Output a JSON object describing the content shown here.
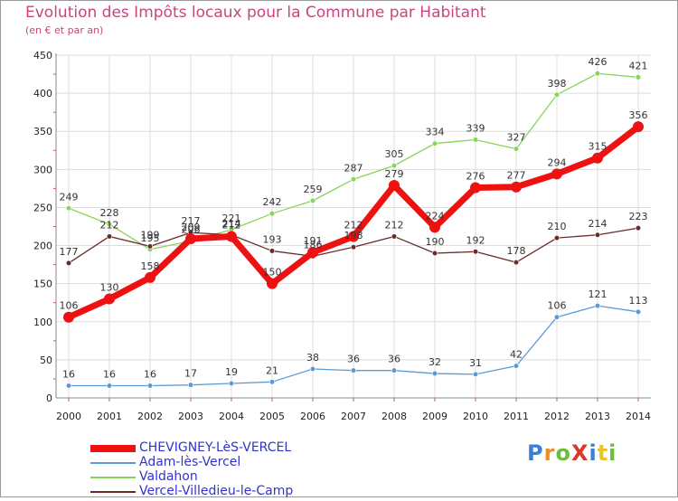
{
  "title": "Evolution des Impôts locaux pour la Commune par Habitant",
  "subtitle": "(en € et par an)",
  "logo": "ProXiti",
  "chart_data": {
    "type": "line",
    "title": "Evolution des Impôts locaux pour la Commune par Habitant",
    "subtitle": "(en € et par an)",
    "xlabel": "",
    "ylabel": "",
    "x": [
      "2000",
      "2001",
      "2002",
      "2003",
      "2004",
      "2005",
      "2006",
      "2007",
      "2008",
      "2009",
      "2010",
      "2011",
      "2012",
      "2013",
      "2014"
    ],
    "ylim": [
      0,
      450
    ],
    "yticks": [
      0,
      50,
      100,
      150,
      200,
      250,
      300,
      350,
      400,
      450
    ],
    "grid": true,
    "legend_position": "bottom-left",
    "series": [
      {
        "name": "CHEVIGNEY-LèS-VERCEL",
        "color": "#ee1111",
        "values": [
          106,
          130,
          158,
          209,
          212,
          150,
          191,
          212,
          279,
          224,
          276,
          277,
          294,
          315,
          356
        ]
      },
      {
        "name": "Adam-lès-Vercel",
        "color": "#5b9bd5",
        "values": [
          16,
          16,
          16,
          17,
          19,
          21,
          38,
          36,
          36,
          32,
          31,
          42,
          106,
          121,
          113
        ]
      },
      {
        "name": "Valdahon",
        "color": "#88d45a",
        "values": [
          249,
          228,
          195,
          206,
          221,
          242,
          259,
          287,
          305,
          334,
          339,
          327,
          398,
          426,
          421
        ]
      },
      {
        "name": "Vercel-Villedieu-le-Camp",
        "color": "#6b2a2a",
        "values": [
          177,
          212,
          199,
          217,
          214,
          193,
          186,
          198,
          212,
          190,
          192,
          178,
          210,
          214,
          223
        ]
      }
    ]
  }
}
